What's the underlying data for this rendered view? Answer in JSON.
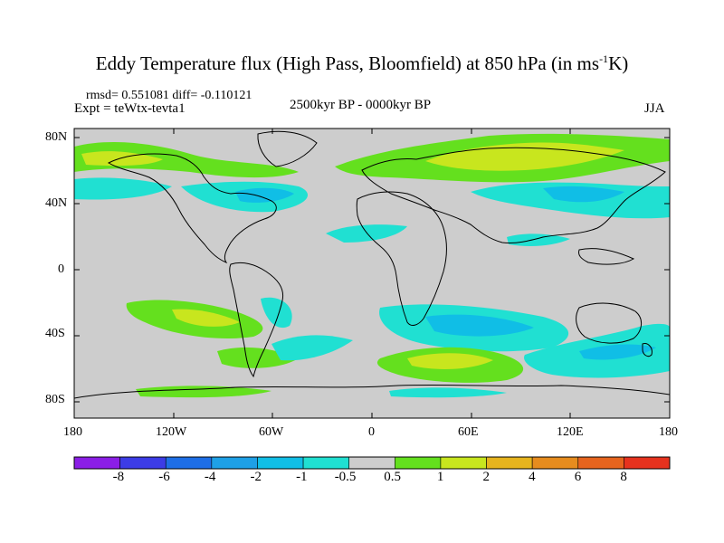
{
  "title_main": "Eddy Temperature flux (High Pass, Bloomfield) at 850 hPa (in ms",
  "title_sup": "-1",
  "title_end": "K)",
  "stats": "rmsd= 0.551081 diff= -0.110121",
  "expt": "Expt = teWtx-tevta1",
  "period": "2500kyr BP - 0000kyr BP",
  "season": "JJA",
  "lat_labels": [
    "80N",
    "40N",
    "0",
    "40S",
    "80S"
  ],
  "lon_labels": [
    "180",
    "120W",
    "60W",
    "0",
    "60E",
    "120E",
    "180"
  ],
  "colorbar": {
    "labels": [
      "-8",
      "-6",
      "-4",
      "-2",
      "-1",
      "-0.5",
      "0.5",
      "1",
      "2",
      "4",
      "6",
      "8"
    ],
    "colors": [
      "#8b1ee6",
      "#3c3ce6",
      "#1e6ee6",
      "#1ea0e6",
      "#10bee6",
      "#20e0d2",
      "#cdcdcd",
      "#64e01e",
      "#c8e61e",
      "#e6b41e",
      "#e68c1e",
      "#e6641e",
      "#e6321e"
    ]
  },
  "map_colors": {
    "background": "#cdcdcd",
    "cyan": "#20e0d2",
    "lightblue": "#10bee6",
    "green": "#64e01e",
    "yellowgreen": "#c8e61e",
    "coast": "#000000"
  }
}
